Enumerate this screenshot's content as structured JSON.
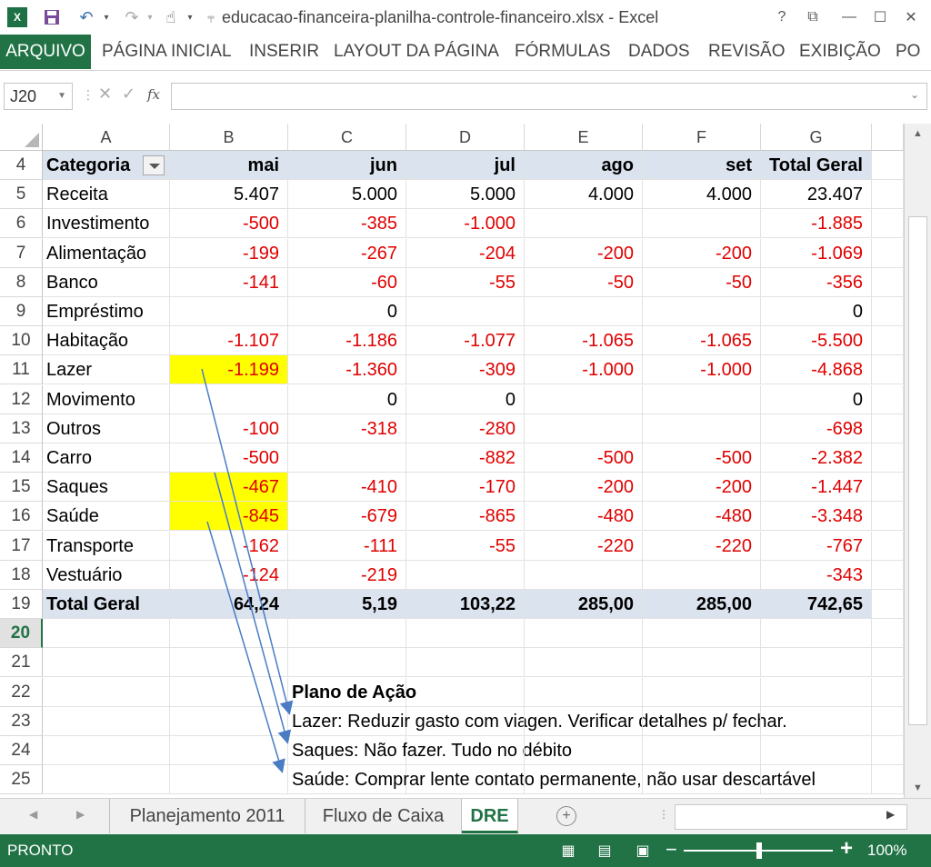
{
  "window": {
    "title": "educacao-financeira-planilha-controle-financeiro.xlsx - Excel",
    "app_icon": "X",
    "controls": [
      "?",
      "⧉",
      "—",
      "☐",
      "✕"
    ]
  },
  "ribbon": {
    "tabs": [
      "ARQUIVO",
      "PÁGINA INICIAL",
      "INSERIR",
      "LAYOUT DA PÁGINA",
      "FÓRMULAS",
      "DADOS",
      "REVISÃO",
      "EXIBIÇÃO",
      "PO"
    ]
  },
  "formula_bar": {
    "name_box": "J20",
    "formula": "",
    "fx_label": "fx"
  },
  "columns": [
    "A",
    "B",
    "C",
    "D",
    "E",
    "F",
    "G"
  ],
  "header_row": {
    "row": "4",
    "cells": [
      "Categoria",
      "mai",
      "jun",
      "jul",
      "ago",
      "set",
      "Total Geral"
    ]
  },
  "rows": [
    {
      "row": "5",
      "cells": [
        "Receita",
        "5.407",
        "5.000",
        "5.000",
        "4.000",
        "4.000",
        "23.407"
      ]
    },
    {
      "row": "6",
      "cells": [
        "Investimento",
        "-500",
        "-385",
        "-1.000",
        "",
        "",
        "-1.885"
      ]
    },
    {
      "row": "7",
      "cells": [
        "Alimentação",
        "-199",
        "-267",
        "-204",
        "-200",
        "-200",
        "-1.069"
      ]
    },
    {
      "row": "8",
      "cells": [
        "Banco",
        "-141",
        "-60",
        "-55",
        "-50",
        "-50",
        "-356"
      ]
    },
    {
      "row": "9",
      "cells": [
        "Empréstimo",
        "",
        "0",
        "",
        "",
        "",
        "0"
      ]
    },
    {
      "row": "10",
      "cells": [
        "Habitação",
        "-1.107",
        "-1.186",
        "-1.077",
        "-1.065",
        "-1.065",
        "-5.500"
      ]
    },
    {
      "row": "11",
      "cells": [
        "Lazer",
        "-1.199",
        "-1.360",
        "-309",
        "-1.000",
        "-1.000",
        "-4.868"
      ]
    },
    {
      "row": "12",
      "cells": [
        "Movimento",
        "",
        "0",
        "0",
        "",
        "",
        "0"
      ]
    },
    {
      "row": "13",
      "cells": [
        "Outros",
        "-100",
        "-318",
        "-280",
        "",
        "",
        "-698"
      ]
    },
    {
      "row": "14",
      "cells": [
        "Carro",
        "-500",
        "",
        "-882",
        "-500",
        "-500",
        "-2.382"
      ]
    },
    {
      "row": "15",
      "cells": [
        "Saques",
        "-467",
        "-410",
        "-170",
        "-200",
        "-200",
        "-1.447"
      ]
    },
    {
      "row": "16",
      "cells": [
        "Saúde",
        "-845",
        "-679",
        "-865",
        "-480",
        "-480",
        "-3.348"
      ]
    },
    {
      "row": "17",
      "cells": [
        "Transporte",
        "-162",
        "-111",
        "-55",
        "-220",
        "-220",
        "-767"
      ]
    },
    {
      "row": "18",
      "cells": [
        "Vestuário",
        "-124",
        "-219",
        "",
        "",
        "",
        "-343"
      ]
    }
  ],
  "total_row": {
    "row": "19",
    "cells": [
      "Total Geral",
      "64,24",
      "5,19",
      "103,22",
      "285,00",
      "285,00",
      "742,65"
    ]
  },
  "empty_rows": [
    "20",
    "21"
  ],
  "selected_row": "20",
  "action_plan": {
    "rows": [
      {
        "row": "22",
        "text": "Plano de Ação",
        "bold": true
      },
      {
        "row": "23",
        "text": "Lazer: Reduzir gasto com viagen. Verificar detalhes p/ fechar.",
        "bold": false
      },
      {
        "row": "24",
        "text": "Saques: Não fazer. Tudo no débito",
        "bold": false
      },
      {
        "row": "25",
        "text": "Saúde: Comprar lente contato permanente, não usar descartável",
        "bold": false
      }
    ]
  },
  "highlighted_cells": [
    "B11",
    "B15",
    "B16"
  ],
  "sheets": {
    "tabs": [
      "Planejamento 2011",
      "Fluxo de Caixa",
      "DRE"
    ],
    "active": "DRE"
  },
  "status_bar": {
    "ready": "PRONTO",
    "zoom": "100%"
  },
  "colors": {
    "excel_green": "#217346",
    "negative": "#e00000",
    "highlight": "#ffff00",
    "pivot_header": "#dbe3ee",
    "arrow": "#4a7cc4"
  }
}
